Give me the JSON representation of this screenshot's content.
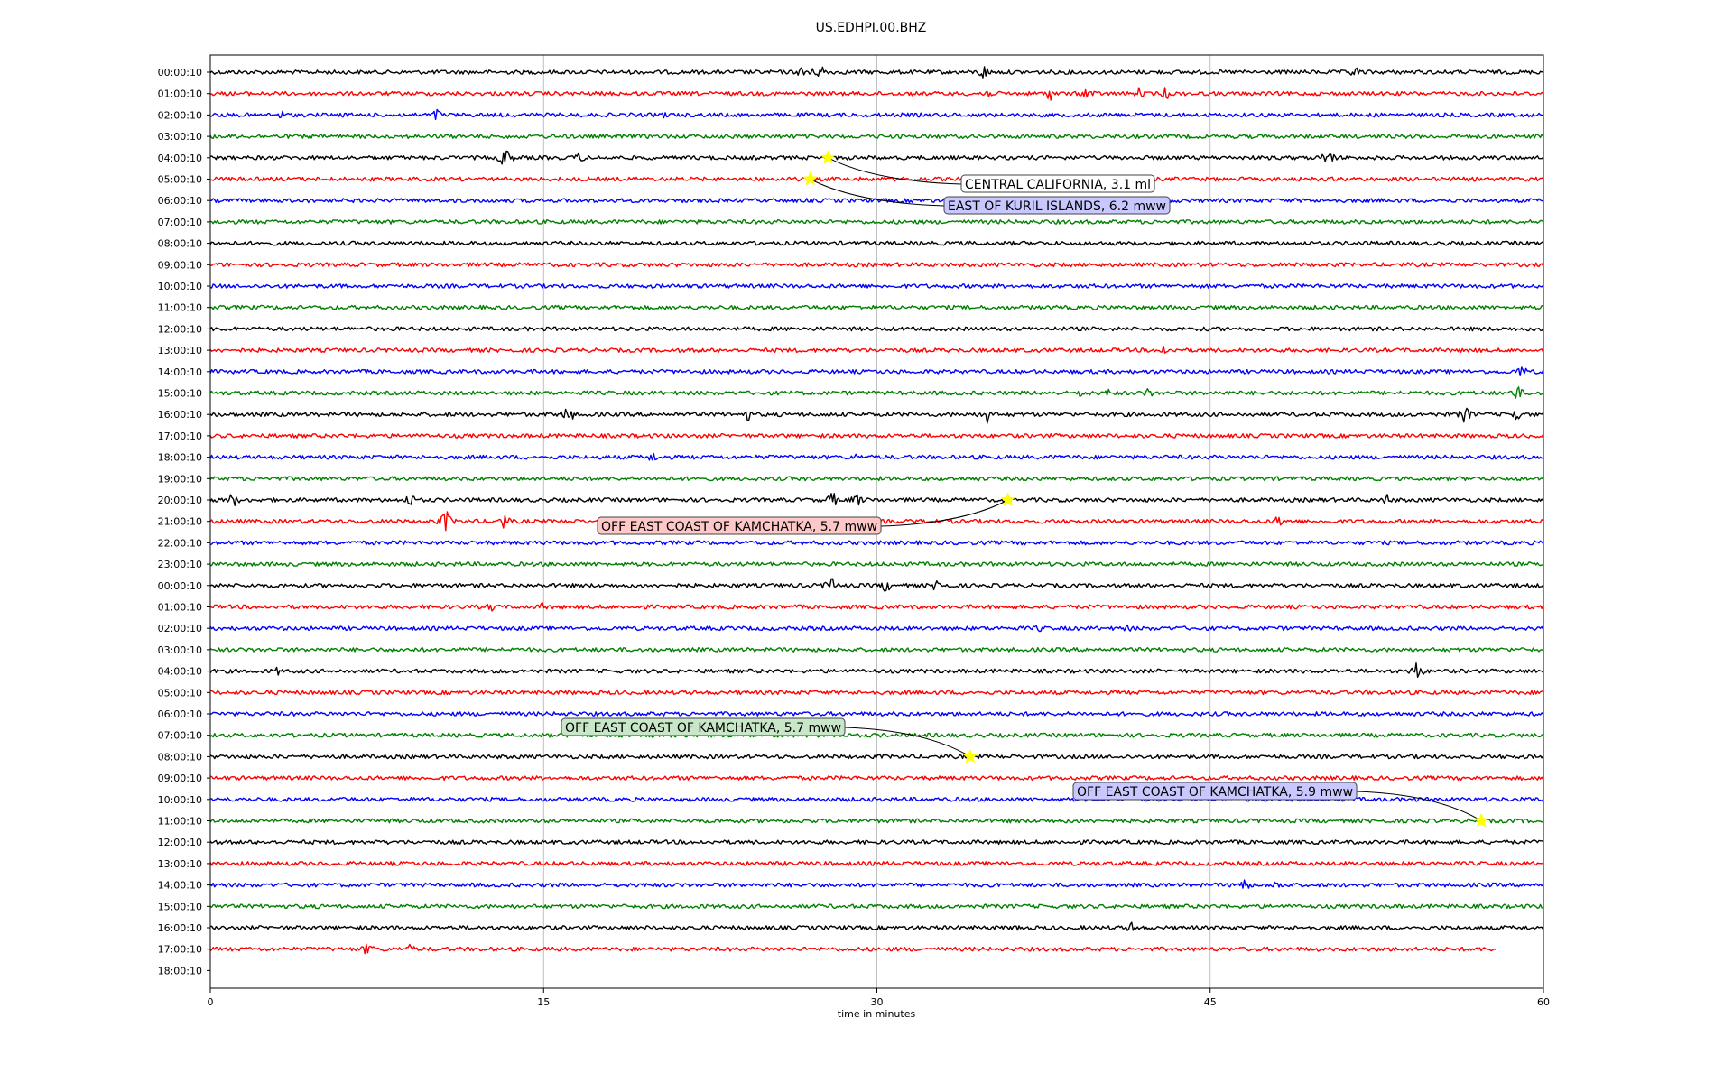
{
  "chart_data": {
    "type": "line",
    "title": "US.EDHPI.00.BHZ",
    "xlabel": "time in minutes",
    "ylabel": "",
    "xlim": [
      0,
      60
    ],
    "xticks": [
      0,
      15,
      30,
      45,
      60
    ],
    "grid": "vertical",
    "rows": [
      {
        "label": "00:00:10",
        "color": "#000000"
      },
      {
        "label": "01:00:10",
        "color": "#ff0000"
      },
      {
        "label": "02:00:10",
        "color": "#0000ff"
      },
      {
        "label": "03:00:10",
        "color": "#008000"
      },
      {
        "label": "04:00:10",
        "color": "#000000"
      },
      {
        "label": "05:00:10",
        "color": "#ff0000"
      },
      {
        "label": "06:00:10",
        "color": "#0000ff"
      },
      {
        "label": "07:00:10",
        "color": "#008000"
      },
      {
        "label": "08:00:10",
        "color": "#000000"
      },
      {
        "label": "09:00:10",
        "color": "#ff0000"
      },
      {
        "label": "10:00:10",
        "color": "#0000ff"
      },
      {
        "label": "11:00:10",
        "color": "#008000"
      },
      {
        "label": "12:00:10",
        "color": "#000000"
      },
      {
        "label": "13:00:10",
        "color": "#ff0000"
      },
      {
        "label": "14:00:10",
        "color": "#0000ff"
      },
      {
        "label": "15:00:10",
        "color": "#008000"
      },
      {
        "label": "16:00:10",
        "color": "#000000"
      },
      {
        "label": "17:00:10",
        "color": "#ff0000"
      },
      {
        "label": "18:00:10",
        "color": "#0000ff"
      },
      {
        "label": "19:00:10",
        "color": "#008000"
      },
      {
        "label": "20:00:10",
        "color": "#000000"
      },
      {
        "label": "21:00:10",
        "color": "#ff0000"
      },
      {
        "label": "22:00:10",
        "color": "#0000ff"
      },
      {
        "label": "23:00:10",
        "color": "#008000"
      },
      {
        "label": "00:00:10",
        "color": "#000000"
      },
      {
        "label": "01:00:10",
        "color": "#ff0000"
      },
      {
        "label": "02:00:10",
        "color": "#0000ff"
      },
      {
        "label": "03:00:10",
        "color": "#008000"
      },
      {
        "label": "04:00:10",
        "color": "#000000"
      },
      {
        "label": "05:00:10",
        "color": "#ff0000"
      },
      {
        "label": "06:00:10",
        "color": "#0000ff"
      },
      {
        "label": "07:00:10",
        "color": "#008000"
      },
      {
        "label": "08:00:10",
        "color": "#000000"
      },
      {
        "label": "09:00:10",
        "color": "#ff0000"
      },
      {
        "label": "10:00:10",
        "color": "#0000ff"
      },
      {
        "label": "11:00:10",
        "color": "#008000"
      },
      {
        "label": "12:00:10",
        "color": "#000000"
      },
      {
        "label": "13:00:10",
        "color": "#ff0000"
      },
      {
        "label": "14:00:10",
        "color": "#0000ff"
      },
      {
        "label": "15:00:10",
        "color": "#008000"
      },
      {
        "label": "16:00:10",
        "color": "#000000"
      },
      {
        "label": "17:00:10",
        "color": "#ff0000",
        "end_minute": 57.9
      },
      {
        "label": "18:00:10",
        "color": "#0000ff",
        "end_minute": 0
      }
    ],
    "events": [
      {
        "row": 4,
        "minute": 27.8,
        "text": "CENTRAL CALIFORNIA, 3.1 ml",
        "box_color": "#ffffff"
      },
      {
        "row": 5,
        "minute": 27.0,
        "text": "EAST OF KURIL ISLANDS, 6.2 mww",
        "box_color": "#c8c8ff"
      },
      {
        "row": 20,
        "minute": 35.9,
        "text": "OFF EAST COAST OF KAMCHATKA, 5.7 mww",
        "box_color": "#ffc8c8"
      },
      {
        "row": 32,
        "minute": 34.2,
        "text": "OFF EAST COAST OF KAMCHATKA, 5.7 mww",
        "box_color": "#c8e6c8"
      },
      {
        "row": 35,
        "minute": 57.2,
        "text": "OFF EAST COAST OF KAMCHATKA, 5.9 mww",
        "box_color": "#c8c8ff"
      }
    ],
    "bursts": [
      {
        "row": 0,
        "minute": 26.8,
        "amp": 14
      },
      {
        "row": 0,
        "minute": 27.5,
        "amp": 10
      },
      {
        "row": 0,
        "minute": 34.8,
        "amp": 10
      },
      {
        "row": 0,
        "minute": 51.5,
        "amp": 8
      },
      {
        "row": 1,
        "minute": 34.9,
        "amp": 8
      },
      {
        "row": 1,
        "minute": 37.8,
        "amp": 9
      },
      {
        "row": 1,
        "minute": 39.5,
        "amp": 10
      },
      {
        "row": 1,
        "minute": 41.8,
        "amp": 7
      },
      {
        "row": 1,
        "minute": 43.0,
        "amp": 8
      },
      {
        "row": 2,
        "minute": 3.2,
        "amp": 6
      },
      {
        "row": 2,
        "minute": 10.2,
        "amp": 8
      },
      {
        "row": 2,
        "minute": 20.4,
        "amp": 5
      },
      {
        "row": 4,
        "minute": 13.3,
        "amp": 14
      },
      {
        "row": 4,
        "minute": 16.6,
        "amp": 8
      },
      {
        "row": 4,
        "minute": 50.3,
        "amp": 12
      },
      {
        "row": 13,
        "minute": 42.9,
        "amp": 7
      },
      {
        "row": 14,
        "minute": 59.0,
        "amp": 9
      },
      {
        "row": 15,
        "minute": 39.3,
        "amp": 8
      },
      {
        "row": 15,
        "minute": 40.5,
        "amp": 7
      },
      {
        "row": 15,
        "minute": 42.2,
        "amp": 7
      },
      {
        "row": 15,
        "minute": 58.8,
        "amp": 10
      },
      {
        "row": 16,
        "minute": 16.1,
        "amp": 12
      },
      {
        "row": 16,
        "minute": 24.2,
        "amp": 8
      },
      {
        "row": 16,
        "minute": 35.0,
        "amp": 12
      },
      {
        "row": 16,
        "minute": 56.5,
        "amp": 12
      },
      {
        "row": 16,
        "minute": 58.7,
        "amp": 10
      },
      {
        "row": 18,
        "minute": 19.9,
        "amp": 7
      },
      {
        "row": 18,
        "minute": 29.0,
        "amp": 5
      },
      {
        "row": 20,
        "minute": 1.0,
        "amp": 10
      },
      {
        "row": 20,
        "minute": 9.0,
        "amp": 9
      },
      {
        "row": 20,
        "minute": 28.0,
        "amp": 10
      },
      {
        "row": 20,
        "minute": 29.1,
        "amp": 9
      },
      {
        "row": 20,
        "minute": 53.0,
        "amp": 8
      },
      {
        "row": 21,
        "minute": 10.6,
        "amp": 14
      },
      {
        "row": 21,
        "minute": 13.2,
        "amp": 10
      },
      {
        "row": 21,
        "minute": 48.1,
        "amp": 8
      },
      {
        "row": 24,
        "minute": 27.9,
        "amp": 12
      },
      {
        "row": 24,
        "minute": 30.4,
        "amp": 9
      },
      {
        "row": 24,
        "minute": 32.8,
        "amp": 12
      },
      {
        "row": 25,
        "minute": 12.7,
        "amp": 7
      },
      {
        "row": 25,
        "minute": 15.0,
        "amp": 6
      },
      {
        "row": 26,
        "minute": 37.3,
        "amp": 5
      },
      {
        "row": 26,
        "minute": 41.3,
        "amp": 5
      },
      {
        "row": 28,
        "minute": 3.0,
        "amp": 6
      },
      {
        "row": 28,
        "minute": 54.3,
        "amp": 12
      },
      {
        "row": 38,
        "minute": 46.5,
        "amp": 10
      },
      {
        "row": 38,
        "minute": 48.1,
        "amp": 8
      },
      {
        "row": 40,
        "minute": 36.3,
        "amp": 6
      },
      {
        "row": 40,
        "minute": 41.5,
        "amp": 8
      },
      {
        "row": 41,
        "minute": 7.1,
        "amp": 9
      },
      {
        "row": 41,
        "minute": 9.0,
        "amp": 6
      }
    ]
  }
}
